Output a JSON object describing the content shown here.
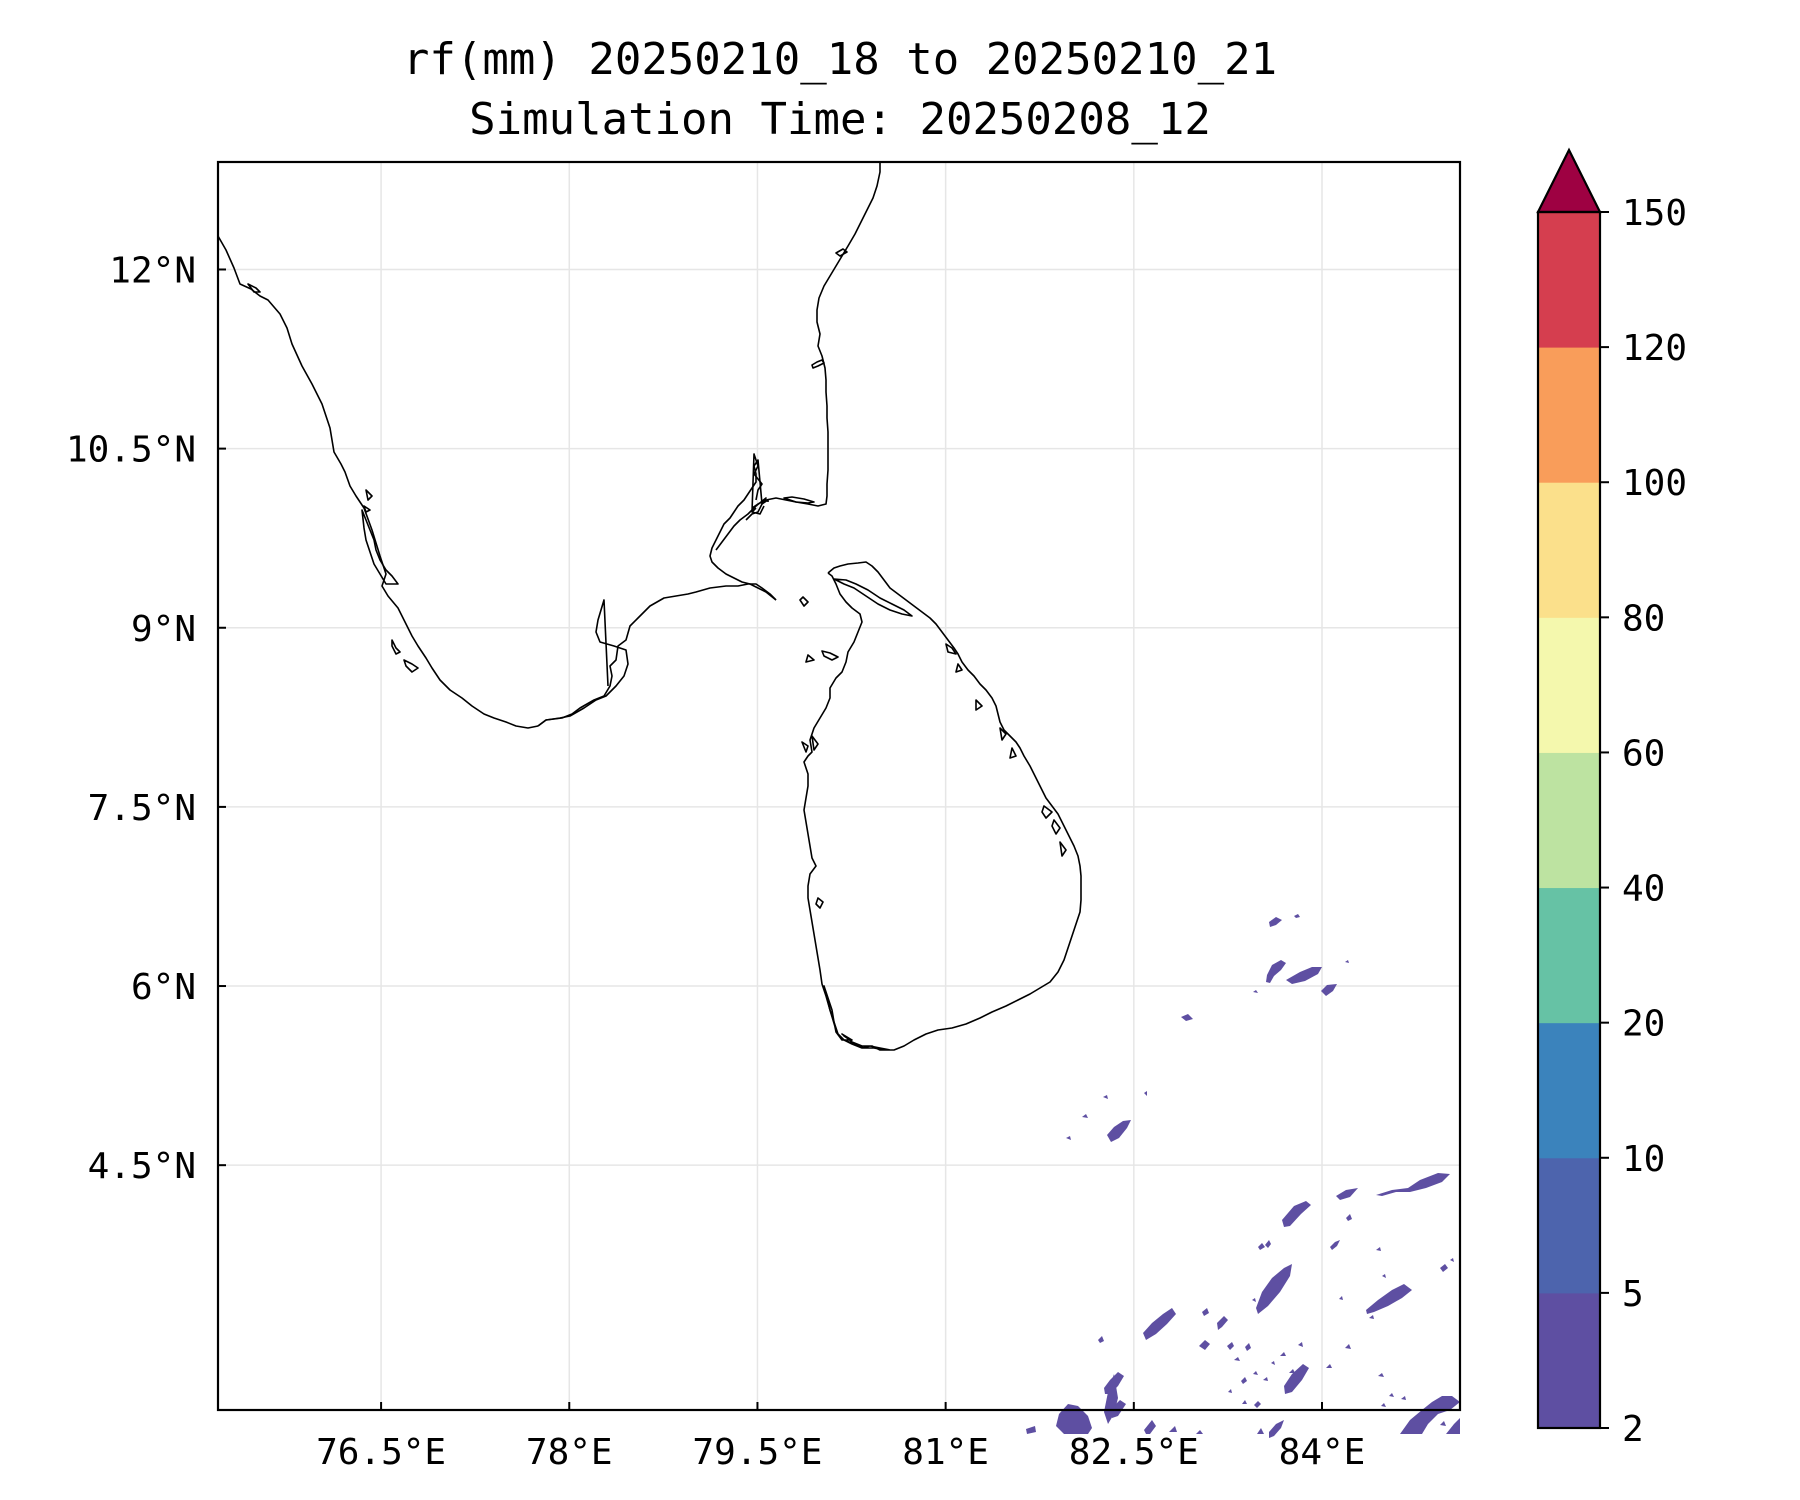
{
  "title_line1": "rf(mm) 20250210_18 to 20250210_21",
  "title_line2": "Simulation Time: 20250208_12",
  "map": {
    "lon_range": [
      75.2,
      85.1
    ],
    "lat_range": [
      2.45,
      12.9
    ],
    "x_ticks": [
      {
        "value": 76.5,
        "label": "76.5°E"
      },
      {
        "value": 78.0,
        "label": "78°E"
      },
      {
        "value": 79.5,
        "label": "79.5°E"
      },
      {
        "value": 81.0,
        "label": "81°E"
      },
      {
        "value": 82.5,
        "label": "82.5°E"
      },
      {
        "value": 84.0,
        "label": "84°E"
      }
    ],
    "y_ticks": [
      {
        "value": 12.0,
        "label": "12°N"
      },
      {
        "value": 10.5,
        "label": "10.5°N"
      },
      {
        "value": 9.0,
        "label": "9°N"
      },
      {
        "value": 7.5,
        "label": "7.5°N"
      },
      {
        "value": 6.0,
        "label": "6°N"
      },
      {
        "value": 4.5,
        "label": "4.5°N"
      }
    ],
    "grid": true,
    "rain_color": "#5e4fa2"
  },
  "colorbar": {
    "levels": [
      {
        "value": 2,
        "label": "2"
      },
      {
        "value": 5,
        "label": "5"
      },
      {
        "value": 10,
        "label": "10"
      },
      {
        "value": 20,
        "label": "20"
      },
      {
        "value": 40,
        "label": "40"
      },
      {
        "value": 60,
        "label": "60"
      },
      {
        "value": 80,
        "label": "80"
      },
      {
        "value": 100,
        "label": "100"
      },
      {
        "value": 120,
        "label": "120"
      },
      {
        "value": 150,
        "label": "150"
      }
    ],
    "colors": [
      "#5e4fa2",
      "#4d64ad",
      "#3b83bc",
      "#66c2a5",
      "#bde3a1",
      "#f4f8ad",
      "#fbe08b",
      "#f99d5a",
      "#d53e4f"
    ],
    "extend_color": "#9e0142"
  }
}
